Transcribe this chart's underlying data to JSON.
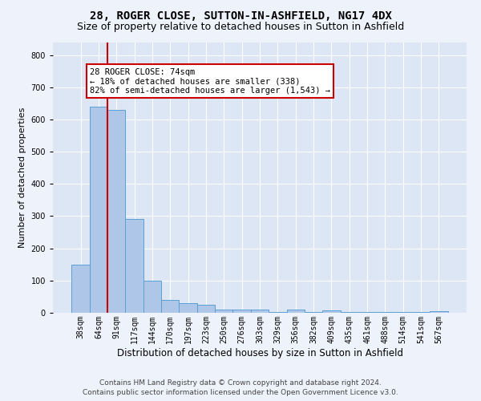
{
  "title": "28, ROGER CLOSE, SUTTON-IN-ASHFIELD, NG17 4DX",
  "subtitle": "Size of property relative to detached houses in Sutton in Ashfield",
  "xlabel": "Distribution of detached houses by size in Sutton in Ashfield",
  "ylabel": "Number of detached properties",
  "categories": [
    "38sqm",
    "64sqm",
    "91sqm",
    "117sqm",
    "144sqm",
    "170sqm",
    "197sqm",
    "223sqm",
    "250sqm",
    "276sqm",
    "303sqm",
    "329sqm",
    "356sqm",
    "382sqm",
    "409sqm",
    "435sqm",
    "461sqm",
    "488sqm",
    "514sqm",
    "541sqm",
    "567sqm"
  ],
  "values": [
    150,
    640,
    630,
    290,
    100,
    40,
    30,
    25,
    10,
    10,
    10,
    2,
    10,
    2,
    8,
    2,
    2,
    2,
    2,
    2,
    5
  ],
  "bar_color": "#aec6e8",
  "bar_edge_color": "#5a9fd4",
  "property_line_x": 1.5,
  "property_line_color": "#cc0000",
  "annotation_text": "28 ROGER CLOSE: 74sqm\n← 18% of detached houses are smaller (338)\n82% of semi-detached houses are larger (1,543) →",
  "annotation_box_color": "#ffffff",
  "annotation_box_edge": "#cc0000",
  "ylim": [
    0,
    840
  ],
  "yticks": [
    0,
    100,
    200,
    300,
    400,
    500,
    600,
    700,
    800
  ],
  "footer_line1": "Contains HM Land Registry data © Crown copyright and database right 2024.",
  "footer_line2": "Contains public sector information licensed under the Open Government Licence v3.0.",
  "bg_color": "#eef2fa",
  "plot_bg_color": "#dde6f5",
  "grid_color": "#ffffff",
  "title_fontsize": 10,
  "subtitle_fontsize": 9,
  "xlabel_fontsize": 8.5,
  "ylabel_fontsize": 8,
  "tick_fontsize": 7,
  "annotation_fontsize": 7.5,
  "footer_fontsize": 6.5
}
